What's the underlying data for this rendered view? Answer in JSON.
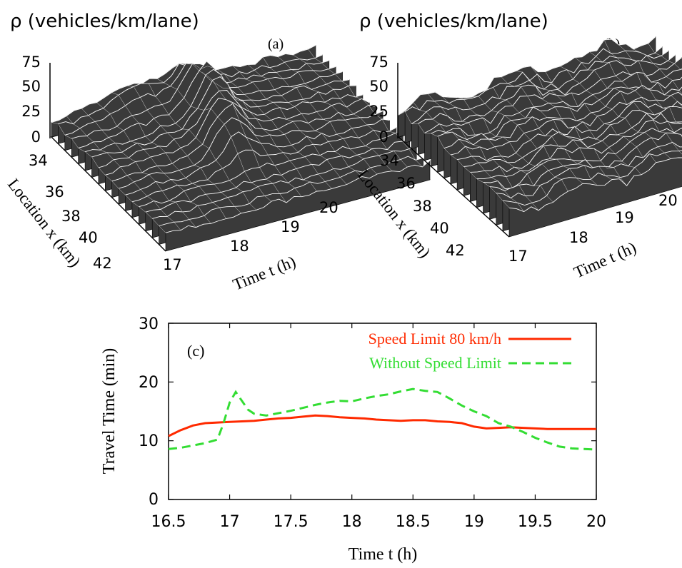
{
  "chart_data": [
    {
      "panel": "(a)",
      "type": "surface",
      "zlabel": "ρ  (vehicles/km/lane)",
      "ylabel": "Location x (km)",
      "xlabel": "Time t (h)",
      "z_ticks": [
        "75",
        "50",
        "25",
        "0"
      ],
      "y_ticks": [
        "34",
        "36",
        "38",
        "40",
        "42"
      ],
      "x_ticks": [
        "17",
        "18",
        "19",
        "20"
      ],
      "zlim": [
        0,
        75
      ],
      "ylim": [
        33,
        43
      ],
      "xlim": [
        16.5,
        20
      ],
      "features": [
        {
          "t": 17.05,
          "x": 37.0,
          "rho": 70
        },
        {
          "t": 17.2,
          "x": 38.0,
          "rho": 55
        },
        {
          "t": 17.5,
          "x": 34.5,
          "rho": 35
        }
      ]
    },
    {
      "panel": "(b)",
      "type": "surface",
      "zlabel": "ρ  (vehicles/km/lane)",
      "ylabel": "Location x (km)",
      "xlabel": "Time t (h)",
      "z_ticks": [
        "75",
        "50",
        "25",
        "0"
      ],
      "y_ticks": [
        "34",
        "36",
        "38",
        "40",
        "42"
      ],
      "x_ticks": [
        "17",
        "18",
        "19",
        "20"
      ],
      "zlim": [
        0,
        75
      ],
      "ylim": [
        33,
        43
      ],
      "xlim": [
        16.5,
        20
      ]
    },
    {
      "panel": "(c)",
      "type": "line",
      "xlabel": "Time t (h)",
      "ylabel": "Travel Time (min)",
      "xlim": [
        16.5,
        20
      ],
      "ylim": [
        0,
        30
      ],
      "x_ticks": [
        "16.5",
        "17",
        "17.5",
        "18",
        "18.5",
        "19",
        "19.5",
        "20"
      ],
      "y_ticks": [
        "0",
        "10",
        "20",
        "30"
      ],
      "legend_position": "top-right",
      "series": [
        {
          "name": "Speed Limit 80 km/h",
          "color": "#ff2a00",
          "dash": "solid",
          "x": [
            16.5,
            16.6,
            16.7,
            16.8,
            16.9,
            17.0,
            17.1,
            17.2,
            17.3,
            17.4,
            17.5,
            17.6,
            17.7,
            17.8,
            17.9,
            18.0,
            18.1,
            18.2,
            18.3,
            18.4,
            18.5,
            18.6,
            18.7,
            18.8,
            18.9,
            19.0,
            19.1,
            19.2,
            19.3,
            19.4,
            19.5,
            19.6,
            19.7,
            19.8,
            19.9,
            20.0
          ],
          "y": [
            10.8,
            11.8,
            12.6,
            13.0,
            13.1,
            13.2,
            13.3,
            13.4,
            13.6,
            13.8,
            13.9,
            14.1,
            14.3,
            14.2,
            14.0,
            13.9,
            13.8,
            13.6,
            13.5,
            13.4,
            13.5,
            13.5,
            13.3,
            13.2,
            13.0,
            12.4,
            12.1,
            12.2,
            12.3,
            12.2,
            12.1,
            12.0,
            12.0,
            12.0,
            12.0,
            12.0
          ]
        },
        {
          "name": "Without Speed Limit",
          "color": "#33dd33",
          "dash": "dashed",
          "x": [
            16.5,
            16.6,
            16.7,
            16.8,
            16.9,
            16.95,
            17.0,
            17.05,
            17.1,
            17.15,
            17.2,
            17.3,
            17.4,
            17.5,
            17.6,
            17.7,
            17.8,
            17.9,
            18.0,
            18.1,
            18.2,
            18.3,
            18.4,
            18.5,
            18.6,
            18.7,
            18.8,
            18.9,
            19.0,
            19.1,
            19.2,
            19.3,
            19.4,
            19.5,
            19.6,
            19.7,
            19.8,
            19.9,
            20.0
          ],
          "y": [
            8.6,
            8.8,
            9.2,
            9.6,
            10.2,
            13.0,
            16.5,
            18.3,
            16.8,
            15.3,
            14.6,
            14.3,
            14.7,
            15.1,
            15.6,
            16.1,
            16.5,
            16.8,
            16.7,
            17.2,
            17.6,
            17.9,
            18.4,
            18.8,
            18.5,
            18.3,
            17.2,
            16.0,
            15.0,
            14.2,
            13.0,
            12.4,
            11.5,
            10.5,
            9.7,
            9.0,
            8.7,
            8.6,
            8.5
          ]
        }
      ]
    }
  ],
  "labels": {
    "a": "(a)",
    "b": "(b)",
    "c": "(c)"
  }
}
